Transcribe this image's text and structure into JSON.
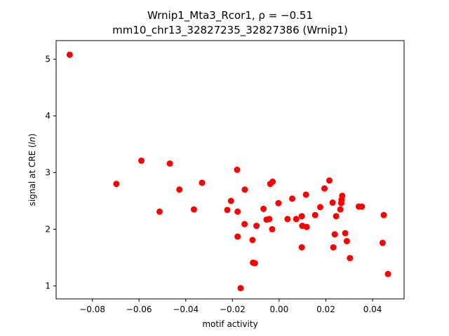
{
  "chart_data": {
    "type": "scatter",
    "title_line1": "Wrnip1_Mta3_Rcor1, ρ = −0.51",
    "title_line2": "mm10_chr13_32827235_32827386 (Wrnip1)",
    "xlabel": "motif activity",
    "ylabel": "signal at CRE (ln)",
    "xlim": [
      -0.0955,
      0.0535
    ],
    "ylim": [
      0.77,
      5.33
    ],
    "xticks": [
      -0.08,
      -0.06,
      -0.04,
      -0.02,
      0.0,
      0.02,
      0.04
    ],
    "xtick_labels": [
      "−0.08",
      "−0.06",
      "−0.04",
      "−0.02",
      "0.00",
      "0.02",
      "0.04"
    ],
    "yticks": [
      1,
      2,
      3,
      4,
      5
    ],
    "ytick_labels": [
      "1",
      "2",
      "3",
      "4",
      "5"
    ],
    "grid": false,
    "marker_color": "#ff0000",
    "points": [
      {
        "x": -0.0897,
        "y": 5.08
      },
      {
        "x": -0.0697,
        "y": 2.8
      },
      {
        "x": -0.059,
        "y": 3.21
      },
      {
        "x": -0.0512,
        "y": 2.31
      },
      {
        "x": -0.0468,
        "y": 3.16
      },
      {
        "x": -0.0427,
        "y": 2.7
      },
      {
        "x": -0.0365,
        "y": 2.35
      },
      {
        "x": -0.033,
        "y": 2.82
      },
      {
        "x": -0.0222,
        "y": 2.34
      },
      {
        "x": -0.0206,
        "y": 2.5
      },
      {
        "x": -0.018,
        "y": 3.05
      },
      {
        "x": -0.0178,
        "y": 2.31
      },
      {
        "x": -0.0178,
        "y": 1.87
      },
      {
        "x": -0.0165,
        "y": 0.96
      },
      {
        "x": -0.0147,
        "y": 2.7
      },
      {
        "x": -0.0148,
        "y": 2.09
      },
      {
        "x": -0.0114,
        "y": 1.81
      },
      {
        "x": -0.0112,
        "y": 1.41
      },
      {
        "x": -0.0104,
        "y": 1.4
      },
      {
        "x": -0.0097,
        "y": 2.06
      },
      {
        "x": -0.0067,
        "y": 2.36
      },
      {
        "x": -0.0054,
        "y": 2.17
      },
      {
        "x": -0.0042,
        "y": 2.18
      },
      {
        "x": -0.0038,
        "y": 2.8
      },
      {
        "x": -0.0028,
        "y": 2.84
      },
      {
        "x": -0.003,
        "y": 2.0
      },
      {
        "x": -0.0003,
        "y": 2.46
      },
      {
        "x": 0.0036,
        "y": 2.18
      },
      {
        "x": 0.0056,
        "y": 2.54
      },
      {
        "x": 0.0073,
        "y": 2.18
      },
      {
        "x": 0.0097,
        "y": 2.23
      },
      {
        "x": 0.0099,
        "y": 2.06
      },
      {
        "x": 0.0097,
        "y": 1.68
      },
      {
        "x": 0.0115,
        "y": 2.61
      },
      {
        "x": 0.0118,
        "y": 2.04
      },
      {
        "x": 0.0154,
        "y": 2.25
      },
      {
        "x": 0.0176,
        "y": 2.39
      },
      {
        "x": 0.0194,
        "y": 2.72
      },
      {
        "x": 0.0215,
        "y": 2.86
      },
      {
        "x": 0.0229,
        "y": 2.47
      },
      {
        "x": 0.0232,
        "y": 1.68
      },
      {
        "x": 0.0238,
        "y": 1.91
      },
      {
        "x": 0.0244,
        "y": 2.23
      },
      {
        "x": 0.0262,
        "y": 2.35
      },
      {
        "x": 0.0266,
        "y": 2.46
      },
      {
        "x": 0.0267,
        "y": 2.52
      },
      {
        "x": 0.027,
        "y": 2.59
      },
      {
        "x": 0.0283,
        "y": 1.93
      },
      {
        "x": 0.029,
        "y": 1.79
      },
      {
        "x": 0.0303,
        "y": 1.49
      },
      {
        "x": 0.0341,
        "y": 2.4
      },
      {
        "x": 0.0354,
        "y": 2.4
      },
      {
        "x": 0.0443,
        "y": 1.76
      },
      {
        "x": 0.0448,
        "y": 2.25
      },
      {
        "x": 0.0466,
        "y": 1.21
      }
    ]
  }
}
